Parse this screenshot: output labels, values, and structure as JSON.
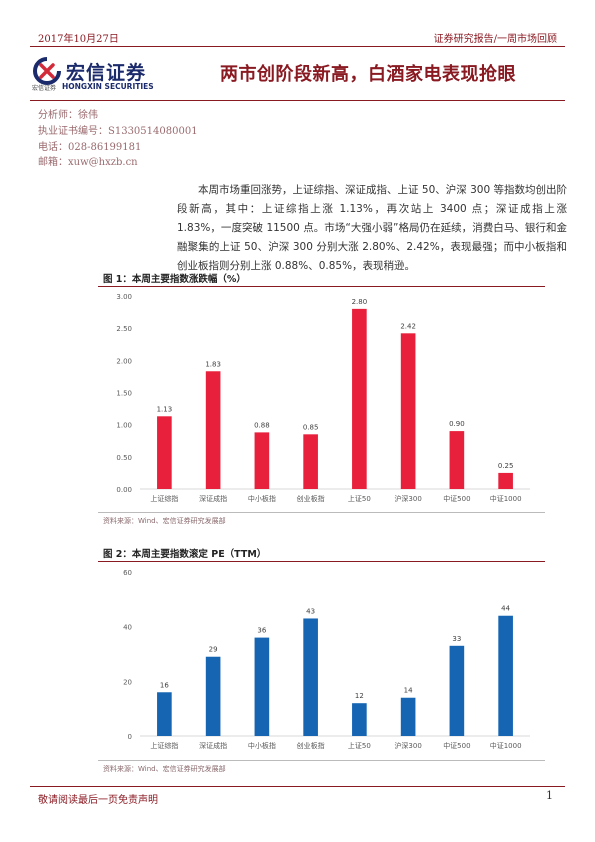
{
  "header": {
    "date": "2017年10月27日",
    "series": "证券研究报告/一周市场回顾",
    "brand_cn": "宏信证券",
    "brand_sub_cn": "宏信证券",
    "brand_en": "HONGXIN SECURITIES",
    "logo_icon": "hongxin-logo-icon",
    "accent_color": "#8a1a22"
  },
  "report_title": "两市创阶段新高，白酒家电表现抢眼",
  "analyst": {
    "name": "分析师：徐伟",
    "license": "执业证书编号：S1330514080001",
    "phone": "电话：028-86199181",
    "email": "邮箱：xuw@hxzb.cn"
  },
  "summary": "本周市场重回涨势，上证综指、深证成指、上证 50、沪深 300 等指数均创出阶段新高，其中：上证综指上涨 1.13%，再次站上 3400 点；深证成指上涨 1.83%，一度突破 11500 点。市场“大强小弱”格局仍在延续，消费白马、银行和金融聚集的上证 50、沪深 300 分别大涨 2.80%、2.42%，表现最强；而中小板指和创业板指则分别上涨 0.88%、0.85%，表现稍逊。",
  "figures": {
    "fig1": {
      "title": "图 1：本周主要指数涨跌幅（%）",
      "source": "资料来源：Wind、宏信证券研究发展部"
    },
    "fig2": {
      "title": "图 2：本周主要指数滚定 PE（TTM）",
      "source": "资料来源：Wind、宏信证券研究发展部"
    }
  },
  "chart_data": [
    {
      "type": "bar",
      "title": "图 1：本周主要指数涨跌幅（%）",
      "categories": [
        "上证综指",
        "深证成指",
        "中小板指",
        "创业板指",
        "上证50",
        "沪深300",
        "中证500",
        "中证1000"
      ],
      "values": [
        1.13,
        1.83,
        0.88,
        0.85,
        2.8,
        2.42,
        0.9,
        0.25
      ],
      "value_labels": [
        "1.13",
        "1.83",
        "0.88",
        "0.85",
        "2.80",
        "2.42",
        "0.90",
        "0.25"
      ],
      "yticks": [
        "0.00",
        "0.50",
        "1.00",
        "1.50",
        "2.00",
        "2.50",
        "3.00"
      ],
      "ylim": [
        0,
        3
      ],
      "color": "#e8203c",
      "grid": false
    },
    {
      "type": "bar",
      "title": "图 2：本周主要指数滚定 PE（TTM）",
      "categories": [
        "上证综指",
        "深证成指",
        "中小板指",
        "创业板指",
        "上证50",
        "沪深300",
        "中证500",
        "中证1000"
      ],
      "values": [
        16,
        29,
        36,
        43,
        12,
        14,
        33,
        44
      ],
      "value_labels": [
        "16",
        "29",
        "36",
        "43",
        "12",
        "14",
        "33",
        "44"
      ],
      "yticks": [
        "0",
        "20",
        "40",
        "60"
      ],
      "ylim": [
        0,
        60
      ],
      "color": "#1565b3",
      "grid": false
    }
  ],
  "footer": {
    "disclaimer": "敬请阅读最后一页免责声明",
    "page_number": "1"
  }
}
